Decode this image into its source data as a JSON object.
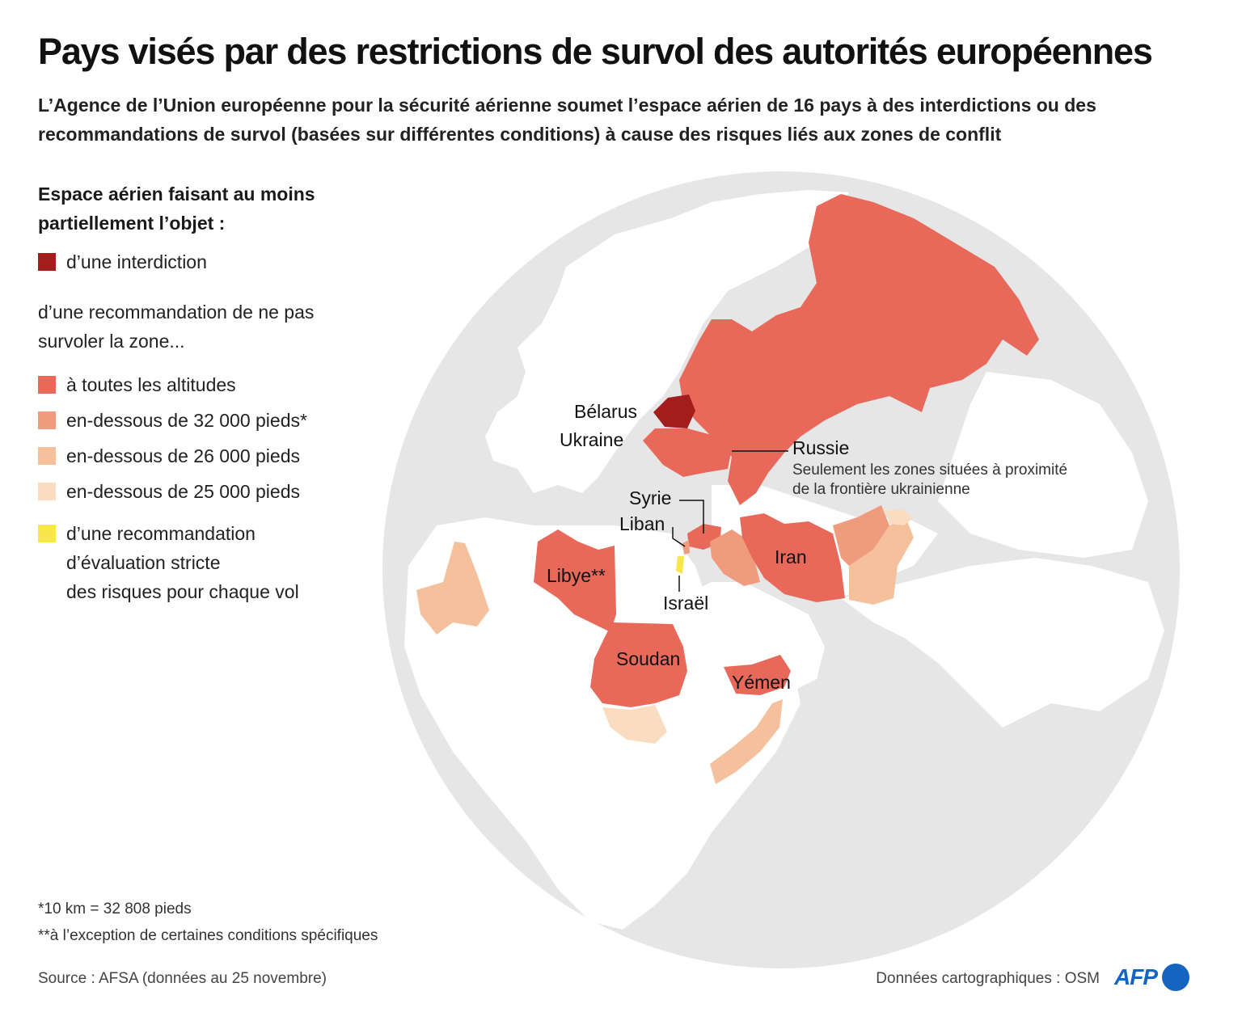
{
  "title": "Pays visés par des restrictions de survol des autorités européennes",
  "subtitle": "L’Agence de l’Union européenne pour la sécurité aérienne soumet l’espace aérien de 16 pays à des interdictions ou des recommandations de survol (basées sur différentes conditions) à cause des risques liés aux zones de conflit",
  "legend": {
    "heading": "Espace aérien faisant au moins partiellement l’objet :",
    "ban": {
      "label": "d’une interdiction",
      "color": "#a31d1d"
    },
    "recommendation_heading": "d’une recommandation de ne pas survoler la zone...",
    "levels": [
      {
        "label": "à toutes les altitudes",
        "color": "#e8695a"
      },
      {
        "label": "en-dessous de 32 000 pieds*",
        "color": "#ef9c7e"
      },
      {
        "label": "en-dessous de 26 000 pieds",
        "color": "#f5c09c"
      },
      {
        "label": "en-dessous de 25 000 pieds",
        "color": "#fadcc0"
      }
    ],
    "assessment": {
      "lines": [
        "d’une recommandation",
        "d’évaluation stricte",
        "des risques pour chaque vol"
      ],
      "color": "#f7e74a"
    }
  },
  "map": {
    "labels": {
      "belarus": "Bélarus",
      "ukraine": "Ukraine",
      "russia": "Russie",
      "russia_note_1": "Seulement les zones situées à proximité",
      "russia_note_2": "de la frontière ukrainienne",
      "syria": "Syrie",
      "lebanon": "Liban",
      "libya": "Libye**",
      "iran": "Iran",
      "israel": "Israël",
      "sudan": "Soudan",
      "yemen": "Yémen"
    }
  },
  "footnotes": [
    "*10 km = 32 808 pieds",
    "**à l’exception de certaines conditions spécifiques"
  ],
  "source": "Source : AFSA (données au 25 novembre)",
  "credit": "Données cartographiques : OSM",
  "logo_text": "AFP",
  "colors": {
    "globe": "#e6e6e6",
    "land": "#ffffff",
    "ban": "#a31d1d",
    "all_altitudes": "#e8695a",
    "below_32000": "#ef9c7e",
    "below_26000": "#f5c09c",
    "below_25000": "#fadcc0",
    "assessment": "#f7e74a",
    "brand": "#1565c0"
  }
}
